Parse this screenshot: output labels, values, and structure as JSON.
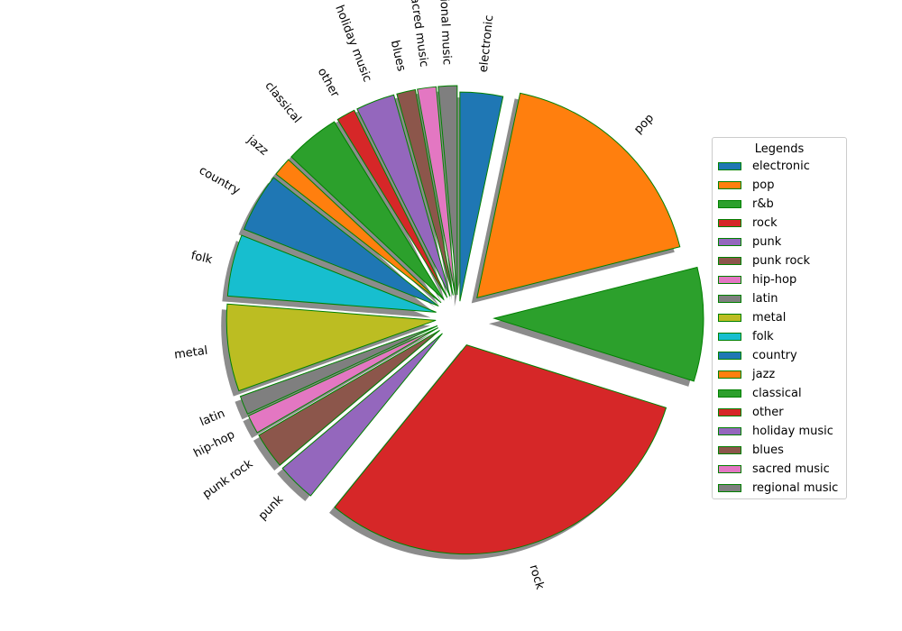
{
  "chart_data": {
    "type": "pie",
    "title": "",
    "categories": [
      "electronic",
      "pop",
      "r&b",
      "rock",
      "punk",
      "punk rock",
      "hip-hop",
      "latin",
      "metal",
      "folk",
      "country",
      "jazz",
      "classical",
      "other",
      "holiday music",
      "blues",
      "sacred music",
      "regional music"
    ],
    "values": [
      3.2,
      17.2,
      8.5,
      30.0,
      2.9,
      2.7,
      1.4,
      1.4,
      6.5,
      4.6,
      4.4,
      1.4,
      4.1,
      1.4,
      2.9,
      1.4,
      1.4,
      1.4
    ],
    "colors": [
      "#1f77b4",
      "#ff7f0e",
      "#2ca02c",
      "#d62728",
      "#9467bd",
      "#8c564b",
      "#e377c2",
      "#7f7f7f",
      "#bcbd22",
      "#17becf",
      "#1f77b4",
      "#ff7f0e",
      "#2ca02c",
      "#d62728",
      "#9467bd",
      "#8c564b",
      "#e377c2",
      "#7f7f7f"
    ],
    "edge_color": "#008000",
    "shadow": true,
    "start_angle_deg": 90,
    "direction": "clockwise",
    "legend": {
      "title": "Legends",
      "placement": "right"
    }
  }
}
